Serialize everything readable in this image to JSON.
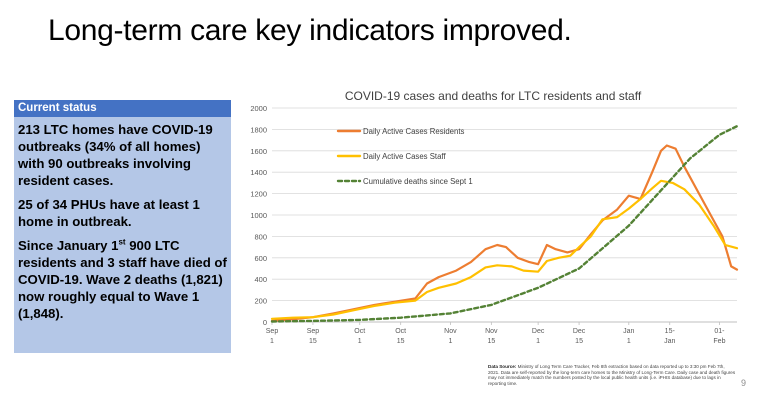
{
  "slide": {
    "title": "Long-term care key indicators improved.",
    "page_number": "9"
  },
  "status": {
    "header": "Current status",
    "p1": "213 LTC homes have COVID-19 outbreaks (34% of all homes) with 90 outbreaks involving resident cases.",
    "p2": "25 of 34 PHUs have at least 1 home in outbreak.",
    "p3_before": "Since January 1",
    "p3_sup": "st",
    "p3_after": " 900 LTC residents and 3 staff have died of COVID-19. Wave 2 deaths (1,821) now roughly equal to Wave 1 (1,848)."
  },
  "source": {
    "label": "Data Source:",
    "text": " Ministry of Long Term Care Tracker, Feb 8th extraction based on data reported up to 3:30 pm Feb 7th, 2021. Data are self-reported by the long-term care homes to the Ministry of Long-Term Care. Daily case and death figures may not immediately match the numbers posted by the local public health units (i.e. iPHIS database) due to lags in reporting time."
  },
  "chart_data": {
    "type": "line",
    "title": "COVID-19 cases and deaths for LTC residents and staff",
    "ylim": [
      0,
      2000
    ],
    "yticks": [
      "0",
      "200",
      "400",
      "600",
      "800",
      "1000",
      "1200",
      "1400",
      "1600",
      "1800",
      "2000"
    ],
    "x_start": "2020-09-01",
    "x_end": "2021-02-07",
    "xticks": [
      {
        "date": "2020-09-01",
        "top": "Sep",
        "bottom": "1"
      },
      {
        "date": "2020-09-15",
        "top": "Sep",
        "bottom": "15"
      },
      {
        "date": "2020-10-01",
        "top": "Oct",
        "bottom": "1"
      },
      {
        "date": "2020-10-15",
        "top": "Oct",
        "bottom": "15"
      },
      {
        "date": "2020-11-01",
        "top": "Nov",
        "bottom": "1"
      },
      {
        "date": "2020-11-15",
        "top": "Nov",
        "bottom": "15"
      },
      {
        "date": "2020-12-01",
        "top": "Dec",
        "bottom": "1"
      },
      {
        "date": "2020-12-15",
        "top": "Dec",
        "bottom": "15"
      },
      {
        "date": "2021-01-01",
        "top": "Jan",
        "bottom": "1"
      },
      {
        "date": "2021-01-15",
        "top": "15-",
        "bottom": "Jan"
      },
      {
        "date": "2021-02-01",
        "top": "01-",
        "bottom": "Feb"
      }
    ],
    "grid": "horizontal",
    "legend_position": "top-left",
    "series": [
      {
        "name": "Daily Active Cases Residents",
        "color": "#ed7d31",
        "style": "solid",
        "points": [
          [
            "2020-09-01",
            10
          ],
          [
            "2020-09-08",
            25
          ],
          [
            "2020-09-15",
            45
          ],
          [
            "2020-09-22",
            80
          ],
          [
            "2020-09-29",
            120
          ],
          [
            "2020-10-06",
            160
          ],
          [
            "2020-10-13",
            190
          ],
          [
            "2020-10-20",
            220
          ],
          [
            "2020-10-24",
            360
          ],
          [
            "2020-10-28",
            420
          ],
          [
            "2020-11-03",
            480
          ],
          [
            "2020-11-08",
            560
          ],
          [
            "2020-11-13",
            680
          ],
          [
            "2020-11-17",
            720
          ],
          [
            "2020-11-20",
            700
          ],
          [
            "2020-11-22",
            650
          ],
          [
            "2020-11-24",
            600
          ],
          [
            "2020-11-28",
            560
          ],
          [
            "2020-12-01",
            540
          ],
          [
            "2020-12-04",
            720
          ],
          [
            "2020-12-07",
            680
          ],
          [
            "2020-12-11",
            650
          ],
          [
            "2020-12-15",
            680
          ],
          [
            "2020-12-19",
            820
          ],
          [
            "2020-12-23",
            950
          ],
          [
            "2020-12-28",
            1050
          ],
          [
            "2021-01-01",
            1180
          ],
          [
            "2021-01-05",
            1150
          ],
          [
            "2021-01-09",
            1400
          ],
          [
            "2021-01-12",
            1600
          ],
          [
            "2021-01-14",
            1650
          ],
          [
            "2021-01-17",
            1620
          ],
          [
            "2021-01-20",
            1450
          ],
          [
            "2021-01-25",
            1200
          ],
          [
            "2021-01-30",
            950
          ],
          [
            "2021-02-02",
            800
          ],
          [
            "2021-02-05",
            520
          ],
          [
            "2021-02-07",
            490
          ]
        ]
      },
      {
        "name": "Daily Active Cases Staff",
        "color": "#ffc000",
        "style": "solid",
        "points": [
          [
            "2020-09-01",
            30
          ],
          [
            "2020-09-08",
            40
          ],
          [
            "2020-09-15",
            45
          ],
          [
            "2020-09-22",
            70
          ],
          [
            "2020-09-29",
            110
          ],
          [
            "2020-10-06",
            150
          ],
          [
            "2020-10-13",
            180
          ],
          [
            "2020-10-20",
            200
          ],
          [
            "2020-10-24",
            280
          ],
          [
            "2020-10-28",
            320
          ],
          [
            "2020-11-03",
            360
          ],
          [
            "2020-11-08",
            420
          ],
          [
            "2020-11-13",
            510
          ],
          [
            "2020-11-17",
            530
          ],
          [
            "2020-11-22",
            520
          ],
          [
            "2020-11-26",
            480
          ],
          [
            "2020-12-01",
            470
          ],
          [
            "2020-12-04",
            570
          ],
          [
            "2020-12-08",
            600
          ],
          [
            "2020-12-12",
            620
          ],
          [
            "2020-12-15",
            700
          ],
          [
            "2020-12-19",
            800
          ],
          [
            "2020-12-23",
            960
          ],
          [
            "2020-12-28",
            980
          ],
          [
            "2021-01-01",
            1060
          ],
          [
            "2021-01-05",
            1150
          ],
          [
            "2021-01-09",
            1250
          ],
          [
            "2021-01-12",
            1320
          ],
          [
            "2021-01-16",
            1300
          ],
          [
            "2021-01-20",
            1240
          ],
          [
            "2021-01-25",
            1100
          ],
          [
            "2021-01-30",
            900
          ],
          [
            "2021-02-03",
            720
          ],
          [
            "2021-02-07",
            690
          ]
        ]
      },
      {
        "name": "Cumulative deaths since Sept 1",
        "color": "#548235",
        "style": "dashed",
        "points": [
          [
            "2020-09-01",
            5
          ],
          [
            "2020-09-15",
            10
          ],
          [
            "2020-10-01",
            20
          ],
          [
            "2020-10-15",
            40
          ],
          [
            "2020-11-01",
            80
          ],
          [
            "2020-11-15",
            160
          ],
          [
            "2020-12-01",
            320
          ],
          [
            "2020-12-15",
            500
          ],
          [
            "2021-01-01",
            900
          ],
          [
            "2021-01-15",
            1320
          ],
          [
            "2021-01-22",
            1530
          ],
          [
            "2021-02-01",
            1750
          ],
          [
            "2021-02-07",
            1830
          ]
        ]
      }
    ]
  }
}
